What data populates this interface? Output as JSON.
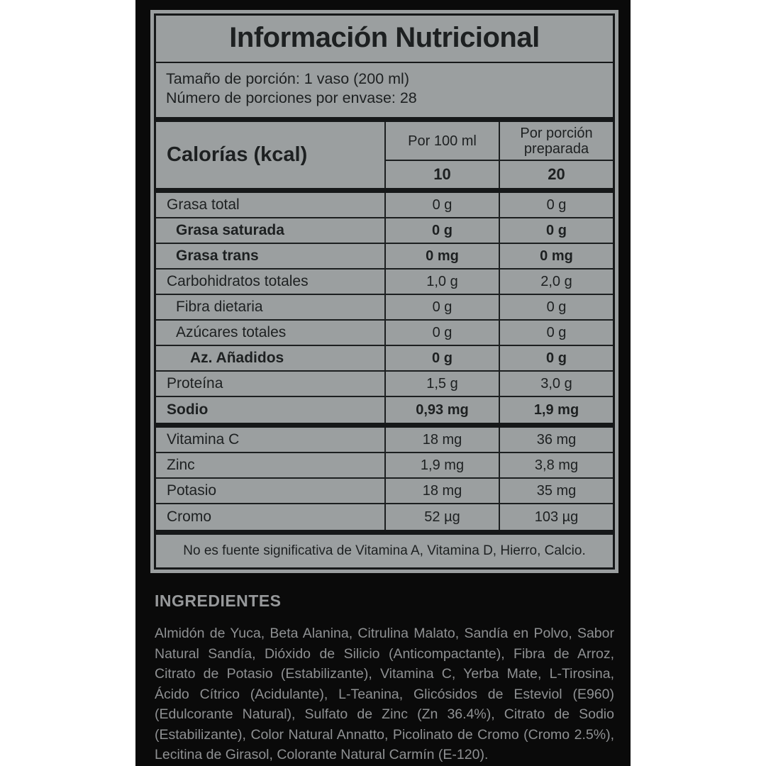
{
  "label": {
    "title": "Información Nutricional",
    "serving": {
      "line1": "Tamaño de porción: 1 vaso (200 ml)",
      "line2": "Número de porciones por envase: 28"
    },
    "header": {
      "calories_label": "Calorías (kcal)",
      "col1_label": "Por 100 ml",
      "col2_label": "Por porción preparada",
      "calories_per_100ml": "10",
      "calories_per_portion": "20"
    },
    "rows": [
      {
        "name": "Grasa total",
        "v100": "0 g",
        "vportion": "0 g"
      },
      {
        "name": "Grasa saturada",
        "v100": "0 g",
        "vportion": "0 g"
      },
      {
        "name": "Grasa trans",
        "v100": "0 mg",
        "vportion": "0 mg"
      },
      {
        "name": "Carbohidratos totales",
        "v100": "1,0 g",
        "vportion": "2,0 g"
      },
      {
        "name": "Fibra dietaria",
        "v100": "0 g",
        "vportion": "0 g"
      },
      {
        "name": "Azúcares totales",
        "v100": "0 g",
        "vportion": "0 g"
      },
      {
        "name": "Az. Añadidos",
        "v100": "0 g",
        "vportion": "0 g"
      },
      {
        "name": "Proteína",
        "v100": "1,5 g",
        "vportion": "3,0 g"
      },
      {
        "name": "Sodio",
        "v100": "0,93 mg",
        "vportion": "1,9 mg"
      }
    ],
    "micronutrients": [
      {
        "name": "Vitamina C",
        "v100": "18 mg",
        "vportion": "36 mg"
      },
      {
        "name": "Zinc",
        "v100": "1,9 mg",
        "vportion": "3,8 mg"
      },
      {
        "name": "Potasio",
        "v100": "18 mg",
        "vportion": "35 mg"
      },
      {
        "name": "Cromo",
        "v100": "52 µg",
        "vportion": "103 µg"
      }
    ],
    "footnote": "No es fuente significativa de Vitamina A, Vitamina D, Hierro, Calcio."
  },
  "ingredients": {
    "heading": "INGREDIENTES",
    "text": "Almidón de Yuca, Beta Alanina, Citrulina Malato, Sandía en Polvo, Sabor Natural Sandía, Dióxido de Silicio (Anticompactante), Fibra de Arroz, Citrato de Potasio (Estabilizante), Vitamina C, Yerba Mate, L-Tirosina, Ácido Cítrico (Acidulante), L-Teanina, Glicósidos de Esteviol (E960) (Edulcorante Natural), Sulfato de Zinc (Zn 36.4%), Citrato de Sodio (Estabilizante), Color Natural Annatto, Picolinato de Cromo (Cromo 2.5%), Lecitina de Girasol, Colorante Natural Carmín (E-120)."
  },
  "colors": {
    "panel_gray": "#9b9fa0",
    "background_black": "#0a0a0a",
    "label_text": "#1d2021",
    "ingredients_text": "#8f9193",
    "ingredients_heading": "#97999b",
    "page_white": "#ffffff"
  }
}
